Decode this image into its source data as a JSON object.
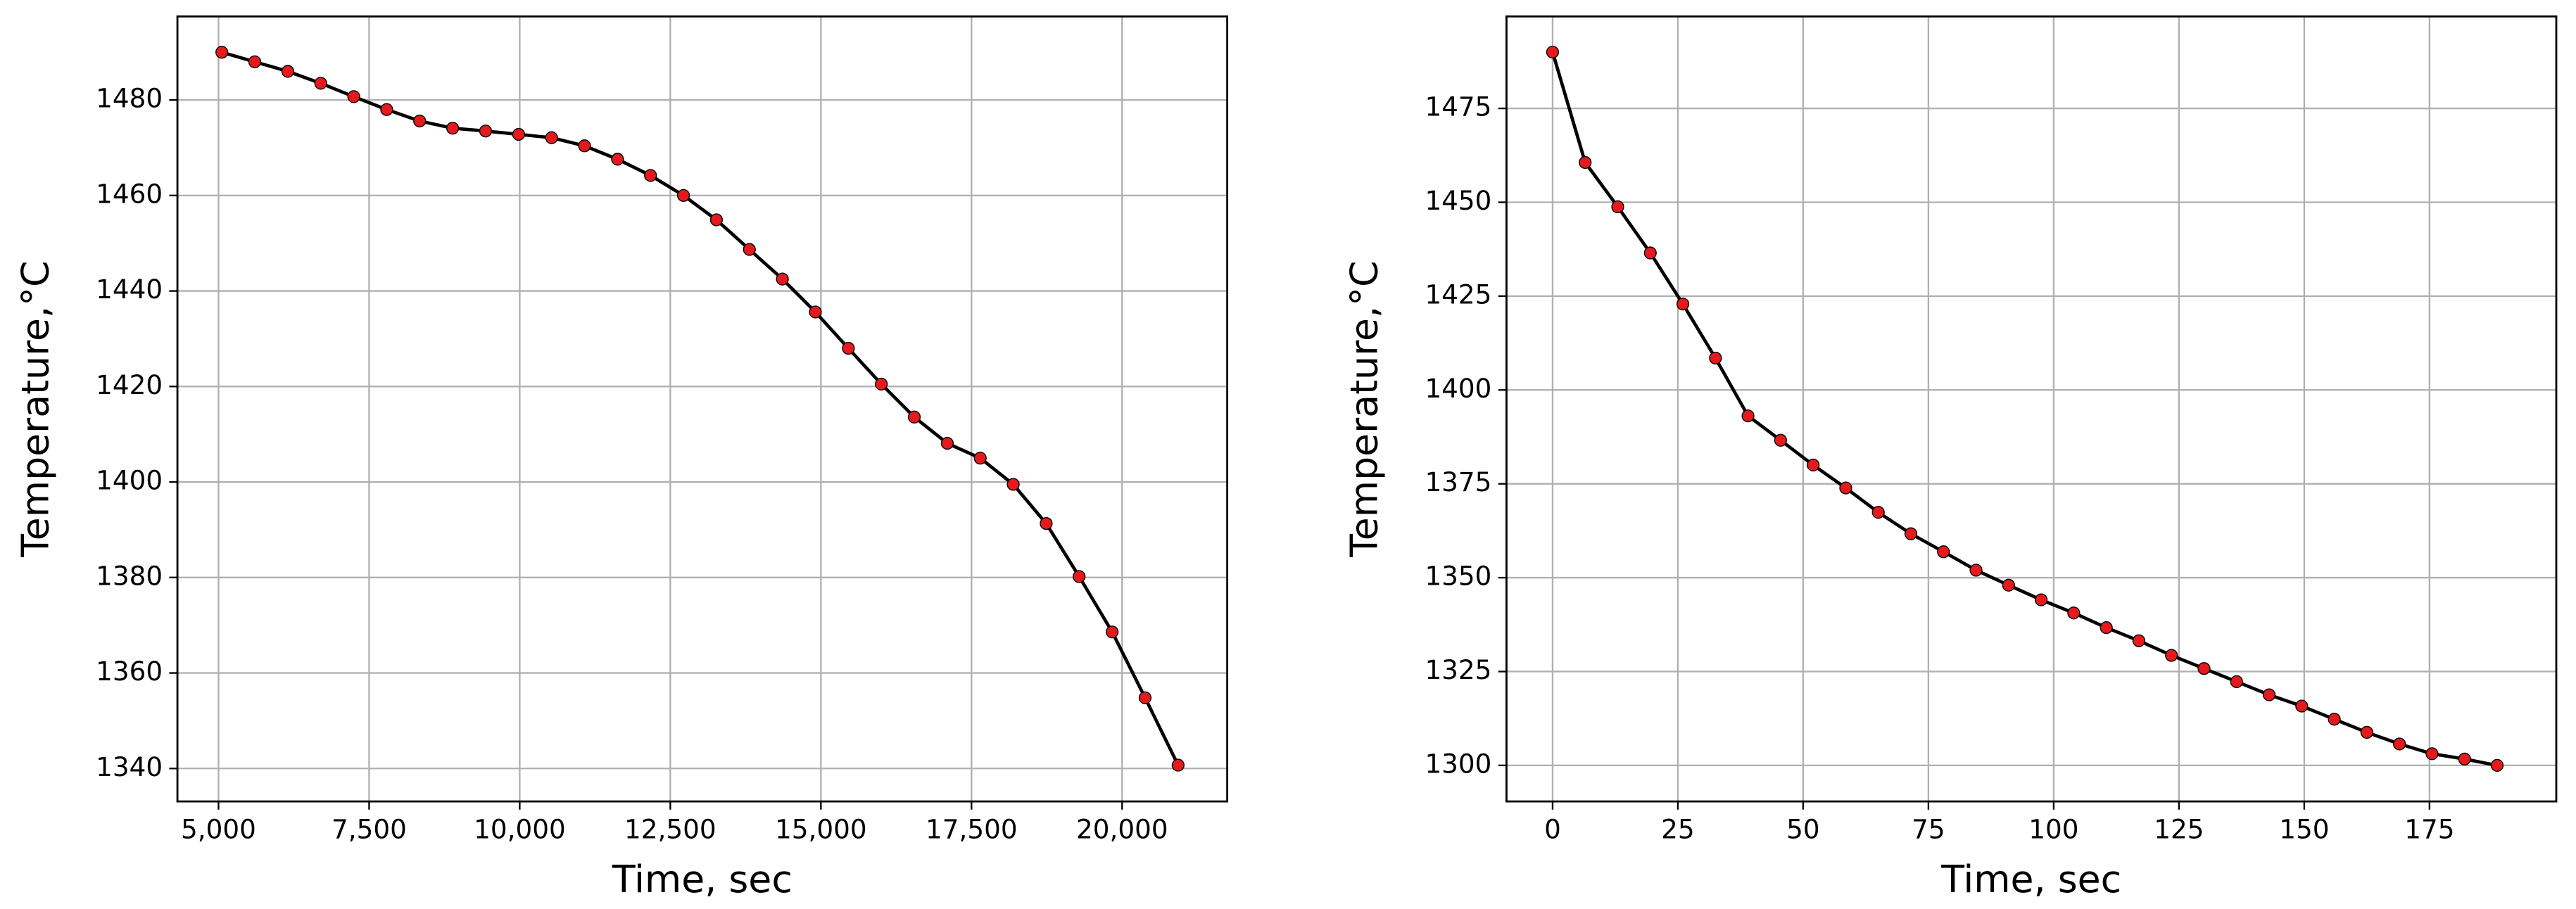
{
  "chart_data": [
    {
      "type": "line",
      "xlabel": "Time, sec",
      "ylabel": "Temperature,°C",
      "x": [
        5055,
        5602,
        6150,
        6697,
        7245,
        7792,
        8339,
        8887,
        9434,
        9982,
        10529,
        11076,
        11624,
        12171,
        12719,
        13266,
        13813,
        14361,
        14908,
        15456,
        16003,
        16550,
        17098,
        17645,
        18193,
        18740,
        19287,
        19835,
        20382,
        20930
      ],
      "values": [
        1490,
        1488,
        1486,
        1483.5,
        1480.7,
        1478,
        1475.6,
        1474.1,
        1473.5,
        1472.8,
        1472.1,
        1470.4,
        1467.6,
        1464.2,
        1460,
        1454.9,
        1448.7,
        1442.5,
        1435.6,
        1428,
        1420.5,
        1413.6,
        1408.1,
        1405,
        1399.5,
        1391.3,
        1380.2,
        1368.6,
        1354.8,
        1340.7
      ],
      "line_color": "#000000",
      "marker_color": "#e41a1c",
      "xlim": [
        4318,
        21745
      ],
      "ylim": [
        1333.1,
        1497.5
      ],
      "xticks": [
        {
          "value": 5000,
          "label": "5,000"
        },
        {
          "value": 7500,
          "label": "7,500"
        },
        {
          "value": 10000,
          "label": "10,000"
        },
        {
          "value": 12500,
          "label": "12,500"
        },
        {
          "value": 15000,
          "label": "15,000"
        },
        {
          "value": 17500,
          "label": "17,500"
        },
        {
          "value": 20000,
          "label": "20,000"
        }
      ],
      "yticks": [
        1340,
        1360,
        1380,
        1400,
        1420,
        1440,
        1460,
        1480
      ],
      "grid": true
    },
    {
      "type": "line",
      "xlabel": "Time, sec",
      "ylabel": "Temperature,°C",
      "x": [
        0,
        6.5,
        13,
        19.5,
        26,
        32.5,
        39,
        45.5,
        52,
        58.5,
        65,
        71.5,
        78,
        84.5,
        91,
        97.5,
        104,
        110.5,
        117,
        123.5,
        130,
        136.5,
        143,
        149.5,
        156,
        162.5,
        169,
        175.5,
        182,
        188.5
      ],
      "values": [
        1490,
        1460.6,
        1448.8,
        1436.5,
        1422.9,
        1408.5,
        1393.1,
        1386.6,
        1380,
        1373.9,
        1367.4,
        1361.7,
        1356.9,
        1352,
        1348,
        1344.1,
        1340.6,
        1336.7,
        1333.2,
        1329.3,
        1325.8,
        1322.3,
        1318.8,
        1315.8,
        1312.3,
        1308.8,
        1305.7,
        1303.1,
        1301.7,
        1300
      ],
      "line_color": "#000000",
      "marker_color": "#e41a1c",
      "xlim": [
        -9.2,
        200.3
      ],
      "ylim": [
        1290.4,
        1499.5
      ],
      "xticks": [
        0,
        25,
        50,
        75,
        100,
        125,
        150,
        175
      ],
      "yticks": [
        1300,
        1325,
        1350,
        1375,
        1400,
        1425,
        1450,
        1475
      ],
      "grid": true
    }
  ]
}
